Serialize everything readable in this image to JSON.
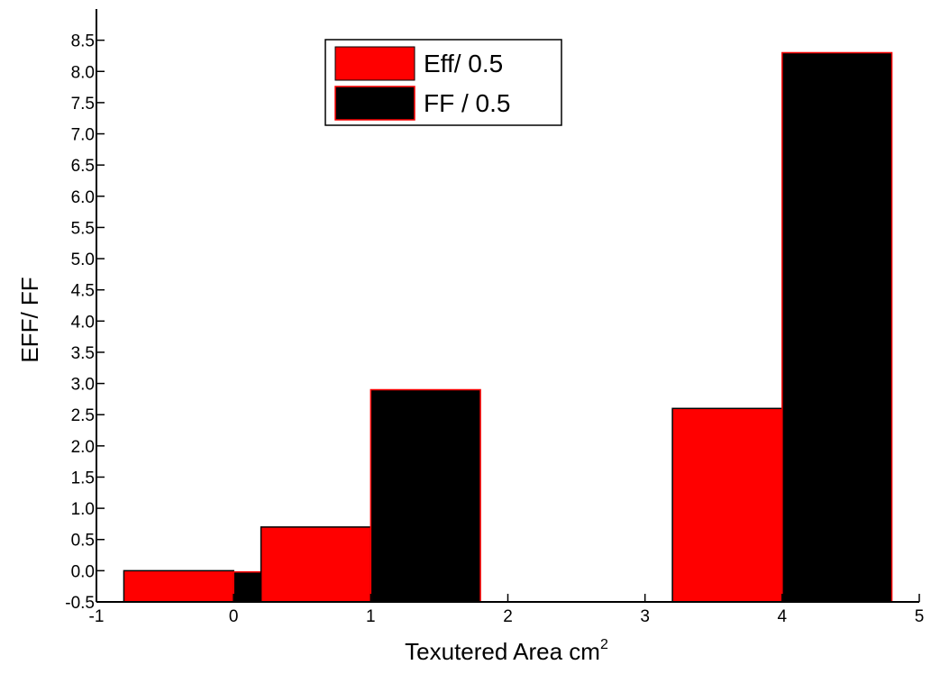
{
  "chart_data": {
    "type": "bar",
    "title": "",
    "xlabel": "Texutered Area cm",
    "xlabel_superscript": "2",
    "ylabel": "EFF/ FF",
    "xlim": [
      -1,
      5
    ],
    "ylim": [
      -0.5,
      9.0
    ],
    "xticks": [
      "-1",
      "0",
      "1",
      "2",
      "3",
      "4",
      "5"
    ],
    "yticks": [
      "-0.5",
      "0.0",
      "0.5",
      "1.0",
      "1.5",
      "2.0",
      "2.5",
      "3.0",
      "3.5",
      "4.0",
      "4.5",
      "5.0",
      "5.5",
      "6.0",
      "6.5",
      "7.0",
      "7.5",
      "8.0",
      "8.5"
    ],
    "grid": false,
    "legend_position": "top-center",
    "bars": [
      {
        "series": "Eff/ 0.5",
        "x0": -0.8,
        "x1": 0.0,
        "value": 0.0
      },
      {
        "series": "FF / 0.5",
        "x0": 0.0,
        "x1": 0.8,
        "value": -0.02
      },
      {
        "series": "Eff/ 0.5",
        "x0": 0.2,
        "x1": 1.0,
        "value": 0.7
      },
      {
        "series": "FF / 0.5",
        "x0": 1.0,
        "x1": 1.8,
        "value": 2.9
      },
      {
        "series": "Eff/ 0.5",
        "x0": 3.2,
        "x1": 4.0,
        "value": 2.6
      },
      {
        "series": "FF / 0.5",
        "x0": 4.0,
        "x1": 4.8,
        "value": 8.3
      }
    ],
    "series": [
      {
        "name": "Eff/ 0.5",
        "color": "#ff0000"
      },
      {
        "name": "FF / 0.5",
        "color": "#000000"
      }
    ]
  }
}
